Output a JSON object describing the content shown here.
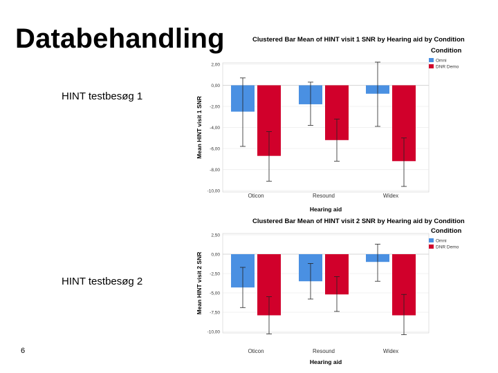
{
  "slide": {
    "title": "Databehandling",
    "label1": "HINT testbesøg 1",
    "label2": "HINT testbesøg 2",
    "page_number": "6"
  },
  "colors": {
    "omni": "#4a90e2",
    "dnr": "#d1002b",
    "error": "#222222"
  },
  "chart_data": [
    {
      "type": "bar",
      "title": "Clustered Bar Mean of HINT visit 1 SNR by Hearing aid by Condition",
      "xlabel": "Hearing aid",
      "ylabel": "Mean HINT visit 1 SNR",
      "legend_title": "Condition",
      "legend_position": "top-right",
      "categories": [
        "Oticon",
        "Resound",
        "Widex"
      ],
      "ylim": [
        -10,
        2
      ],
      "yticks": [
        2,
        0,
        -2,
        -4,
        -6,
        -8,
        -10
      ],
      "ytick_labels": [
        "2,00",
        "0,00",
        "-2,00",
        "-4,00",
        "-6,00",
        "-8,00",
        "-10,00"
      ],
      "series": [
        {
          "name": "Omni",
          "values": [
            -2.5,
            -1.8,
            -0.8
          ],
          "err_low": [
            -5.8,
            -3.8,
            -3.9
          ],
          "err_high": [
            0.7,
            0.3,
            2.2
          ]
        },
        {
          "name": "DNR Demo",
          "values": [
            -6.7,
            -5.2,
            -7.2
          ],
          "err_low": [
            -9.1,
            -7.2,
            -9.6
          ],
          "err_high": [
            -4.4,
            -3.2,
            -5.0
          ]
        }
      ]
    },
    {
      "type": "bar",
      "title": "Clustered Bar Mean of HINT visit 2 SNR by Hearing aid by Condition",
      "xlabel": "Hearing aid",
      "ylabel": "Mean HINT visit 2 SNR",
      "legend_title": "Condition",
      "legend_position": "top-right",
      "categories": [
        "Oticon",
        "Resound",
        "Widex"
      ],
      "ylim": [
        -10,
        2.5
      ],
      "yticks": [
        2.5,
        0,
        -2.5,
        -5,
        -7.5,
        -10
      ],
      "ytick_labels": [
        "2,50",
        "0,00",
        "-2,50",
        "-5,00",
        "-7,50",
        "-10,00"
      ],
      "series": [
        {
          "name": "Omni",
          "values": [
            -4.3,
            -3.5,
            -1.0
          ],
          "err_low": [
            -6.9,
            -5.8,
            -3.5
          ],
          "err_high": [
            -1.7,
            -1.2,
            1.3
          ]
        },
        {
          "name": "DNR Demo",
          "values": [
            -7.9,
            -5.2,
            -7.9
          ],
          "err_low": [
            -10.3,
            -7.4,
            -10.4
          ],
          "err_high": [
            -5.5,
            -2.9,
            -5.2
          ]
        }
      ]
    }
  ]
}
